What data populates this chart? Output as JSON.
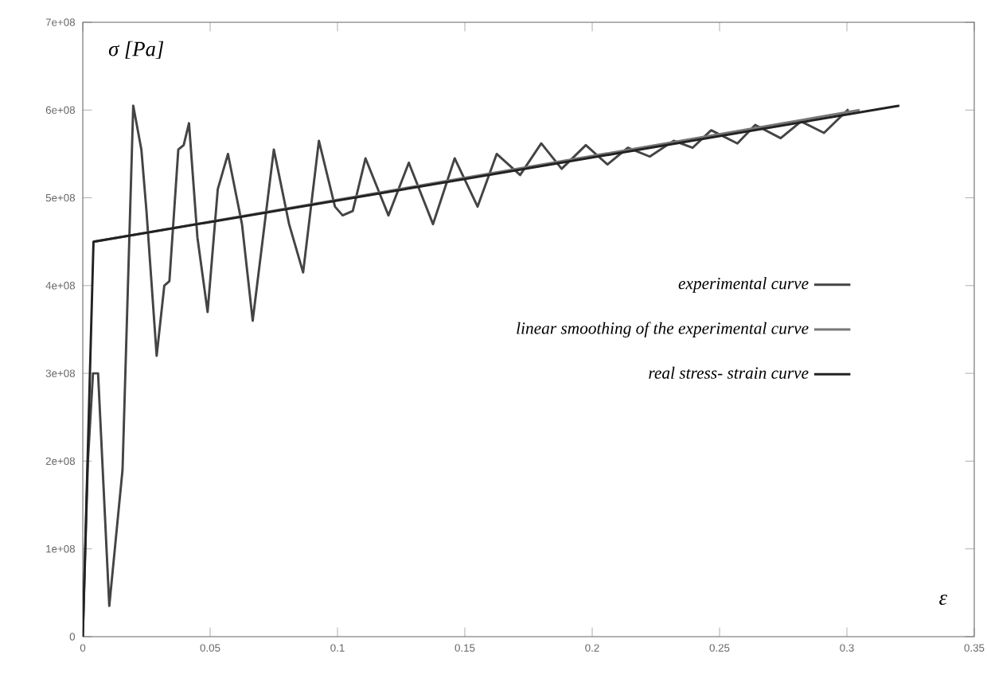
{
  "chart_data": {
    "type": "line",
    "xlabel": "ε",
    "ylabel": "σ [Pa]",
    "xlim": [
      0,
      0.35
    ],
    "xticks": [
      0,
      0.05,
      0.1,
      0.15,
      0.2,
      0.25,
      0.3,
      0.35
    ],
    "ylim": [
      0,
      700000000
    ],
    "yticks": [
      0,
      {
        "value": 100000000,
        "label": "1e+08"
      },
      {
        "value": 200000000,
        "label": "2e+08"
      },
      {
        "value": 300000000,
        "label": "3e+08"
      },
      {
        "value": 400000000,
        "label": "4e+08"
      },
      {
        "value": 500000000,
        "label": "5e+08"
      },
      {
        "value": 600000000,
        "label": "6e+08"
      },
      {
        "value": 700000000,
        "label": "7e+08"
      }
    ],
    "grid": false,
    "legend": "right",
    "marker": "none",
    "line_style": "solid",
    "series": [
      {
        "name": "experimental curve",
        "color": "#444444",
        "x": [
          0,
          0.002,
          0.004,
          0.006,
          0.0104,
          0.0156,
          0.0198,
          0.023,
          0.025,
          0.029,
          0.032,
          0.034,
          0.0375,
          0.0396,
          0.0417,
          0.045,
          0.049,
          0.053,
          0.057,
          0.0625,
          0.0667,
          0.075,
          0.081,
          0.0865,
          0.0927,
          0.099,
          0.102,
          0.106,
          0.111,
          0.12,
          0.128,
          0.1375,
          0.146,
          0.155,
          0.1625,
          0.1717,
          0.18,
          0.188,
          0.1975,
          0.206,
          0.214,
          0.2226,
          0.232,
          0.2394,
          0.2467,
          0.257,
          0.264,
          0.274,
          0.282,
          0.291,
          0.3006
        ],
        "values": [
          0,
          200000000,
          300000000,
          300000000,
          35000000,
          190000000,
          605000000,
          555000000,
          485000000,
          320000000,
          400000000,
          405000000,
          555000000,
          560000000,
          585000000,
          455000000,
          370000000,
          510000000,
          550000000,
          470000000,
          360000000,
          555000000,
          470000000,
          415000000,
          565000000,
          490000000,
          480000000,
          485000000,
          545000000,
          480000000,
          540000000,
          470000000,
          545000000,
          490000000,
          550000000,
          526000000,
          562000000,
          533000000,
          560000000,
          538000000,
          557000000,
          547000000,
          565000000,
          557000000,
          577000000,
          562000000,
          583000000,
          568000000,
          587000000,
          574000000,
          601000000
        ]
      },
      {
        "name": "linear smoothing of the experimental curve",
        "color": "#777777",
        "x": [
          0.0042,
          0.305
        ],
        "values": [
          450000000,
          600000000
        ]
      },
      {
        "name": "real stress- strain curve",
        "color": "#222222",
        "x": [
          0,
          0.0042,
          0.3206
        ],
        "values": [
          0,
          450000000,
          605000000
        ]
      }
    ]
  }
}
